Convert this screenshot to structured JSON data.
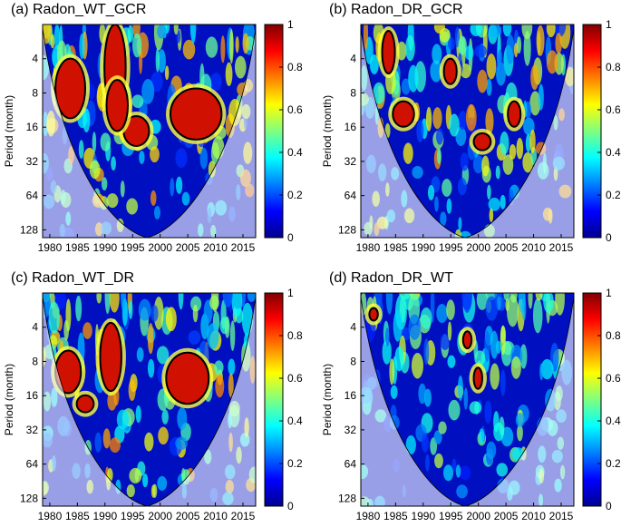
{
  "chart_data": [
    {
      "type": "heatmap",
      "title": "(a) Radon_WT_GCR",
      "ylabel": "Period (month)",
      "xlim": [
        1978.7,
        2017.3
      ],
      "xticks": [
        1980,
        1985,
        1990,
        1995,
        2000,
        2005,
        2010,
        2015
      ],
      "ylim": [
        2,
        150
      ],
      "yticks": [
        4,
        8,
        16,
        32,
        64,
        128
      ],
      "ylog": true,
      "clim": [
        0,
        1
      ],
      "cticks": [
        0,
        0.2,
        0.4,
        0.6,
        0.8,
        1
      ]
    },
    {
      "type": "heatmap",
      "title": "(b) Radon_DR_GCR",
      "ylabel": "Period (month)",
      "xlim": [
        1978.7,
        2017.3
      ],
      "xticks": [
        1980,
        1985,
        1990,
        1995,
        2000,
        2005,
        2010,
        2015
      ],
      "ylim": [
        2,
        150
      ],
      "yticks": [
        4,
        8,
        16,
        32,
        64,
        128
      ],
      "ylog": true,
      "clim": [
        0,
        1
      ],
      "cticks": [
        0,
        0.2,
        0.4,
        0.6,
        0.8,
        1
      ]
    },
    {
      "type": "heatmap",
      "title": "(c) Radon_WT_DR",
      "ylabel": "Period (month)",
      "xlim": [
        1978.7,
        2017.3
      ],
      "xticks": [
        1980,
        1985,
        1990,
        1995,
        2000,
        2005,
        2010,
        2015
      ],
      "ylim": [
        2,
        150
      ],
      "yticks": [
        4,
        8,
        16,
        32,
        64,
        128
      ],
      "ylog": true,
      "clim": [
        0,
        1
      ],
      "cticks": [
        0,
        0.2,
        0.4,
        0.6,
        0.8,
        1
      ]
    },
    {
      "type": "heatmap",
      "title": "(d) Radon_DR_WT",
      "ylabel": "Period (month)",
      "xlim": [
        1978.7,
        2017.3
      ],
      "xticks": [
        1980,
        1985,
        1990,
        1995,
        2000,
        2005,
        2010,
        2015
      ],
      "ylim": [
        2,
        150
      ],
      "yticks": [
        4,
        8,
        16,
        32,
        64,
        128
      ],
      "ylog": true,
      "clim": [
        0,
        1
      ],
      "cticks": [
        0,
        0.2,
        0.4,
        0.6,
        0.8,
        1
      ]
    }
  ]
}
